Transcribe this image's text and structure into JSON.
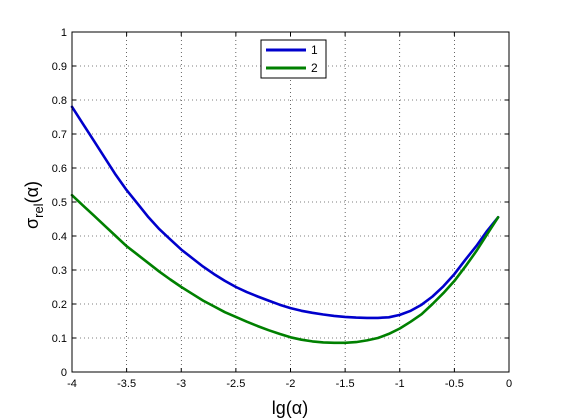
{
  "chart_data": {
    "type": "line",
    "title": "",
    "xlabel": "lg(α)",
    "ylabel_main": "σ",
    "ylabel_sub": "rel",
    "ylabel_tail": "(α)",
    "xlim": [
      -4,
      0
    ],
    "ylim": [
      0,
      1
    ],
    "xticks": [
      -4,
      -3.5,
      -3,
      -2.5,
      -2,
      -1.5,
      -1,
      -0.5,
      0
    ],
    "xtick_labels": [
      "-4",
      "-3.5",
      "-3",
      "-2.5",
      "-2",
      "-1.5",
      "-1",
      "-0.5",
      "0"
    ],
    "yticks": [
      0,
      0.1,
      0.2,
      0.3,
      0.4,
      0.5,
      0.6,
      0.7,
      0.8,
      0.9,
      1
    ],
    "ytick_labels": [
      "0",
      "0.1",
      "0.2",
      "0.3",
      "0.4",
      "0.5",
      "0.6",
      "0.7",
      "0.8",
      "0.9",
      "1"
    ],
    "grid": true,
    "legend_position": "top-center",
    "series": [
      {
        "name": "1",
        "color": "#0000cc",
        "x": [
          -4.0,
          -3.9,
          -3.8,
          -3.7,
          -3.6,
          -3.5,
          -3.4,
          -3.3,
          -3.2,
          -3.1,
          -3.0,
          -2.9,
          -2.8,
          -2.7,
          -2.6,
          -2.5,
          -2.4,
          -2.3,
          -2.2,
          -2.1,
          -2.0,
          -1.9,
          -1.8,
          -1.7,
          -1.6,
          -1.5,
          -1.4,
          -1.3,
          -1.2,
          -1.1,
          -1.0,
          -0.9,
          -0.8,
          -0.7,
          -0.6,
          -0.5,
          -0.4,
          -0.3,
          -0.2,
          -0.1
        ],
        "y": [
          0.78,
          0.73,
          0.68,
          0.63,
          0.58,
          0.535,
          0.495,
          0.455,
          0.42,
          0.39,
          0.36,
          0.335,
          0.31,
          0.288,
          0.268,
          0.25,
          0.235,
          0.222,
          0.21,
          0.198,
          0.188,
          0.18,
          0.174,
          0.169,
          0.165,
          0.162,
          0.16,
          0.159,
          0.159,
          0.161,
          0.168,
          0.18,
          0.198,
          0.222,
          0.252,
          0.288,
          0.33,
          0.37,
          0.415,
          0.455
        ]
      },
      {
        "name": "2",
        "color": "#008000",
        "x": [
          -4.0,
          -3.9,
          -3.8,
          -3.7,
          -3.6,
          -3.5,
          -3.4,
          -3.3,
          -3.2,
          -3.1,
          -3.0,
          -2.9,
          -2.8,
          -2.7,
          -2.6,
          -2.5,
          -2.4,
          -2.3,
          -2.2,
          -2.1,
          -2.0,
          -1.9,
          -1.8,
          -1.7,
          -1.6,
          -1.5,
          -1.4,
          -1.3,
          -1.2,
          -1.1,
          -1.0,
          -0.9,
          -0.8,
          -0.7,
          -0.6,
          -0.5,
          -0.4,
          -0.3,
          -0.2,
          -0.1
        ],
        "y": [
          0.52,
          0.49,
          0.46,
          0.43,
          0.4,
          0.37,
          0.345,
          0.32,
          0.295,
          0.272,
          0.25,
          0.23,
          0.21,
          0.193,
          0.176,
          0.162,
          0.148,
          0.135,
          0.123,
          0.112,
          0.102,
          0.095,
          0.09,
          0.087,
          0.086,
          0.086,
          0.088,
          0.093,
          0.1,
          0.112,
          0.128,
          0.148,
          0.17,
          0.2,
          0.232,
          0.268,
          0.31,
          0.355,
          0.405,
          0.455
        ]
      }
    ]
  }
}
